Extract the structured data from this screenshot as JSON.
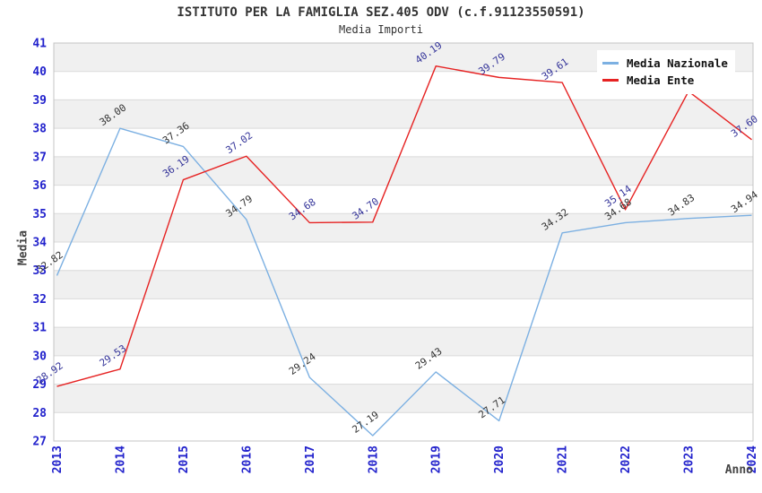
{
  "header": {
    "title": "ISTITUTO PER LA FAMIGLIA SEZ.405 ODV (c.f.91123550591)",
    "subtitle": "Media Importi"
  },
  "colors": {
    "axis_tick_text": "#2222CC",
    "band_gray": "#F0F0F0",
    "gridline": "#DADADA",
    "plot_border": "#C4C4C4",
    "axis_title_text": "#444444",
    "title_text": "#333333"
  },
  "chart_data": {
    "type": "line",
    "title": "ISTITUTO PER LA FAMIGLIA SEZ.405 ODV (c.f.91123550591)",
    "subtitle": "Media Importi",
    "x": [
      "2013",
      "2014",
      "2015",
      "2016",
      "2017",
      "2018",
      "2019",
      "2020",
      "2021",
      "2022",
      "2023",
      "2024"
    ],
    "xlabel": "Anno",
    "ylabel": "Media",
    "ylim": [
      27,
      41
    ],
    "ytick_step": 1,
    "grid": "horizontal gridlines with alternating gray/white bands",
    "legend_position": "top-right",
    "series": [
      {
        "name": "Media Nazionale",
        "color": "#7CB0E2",
        "label_color": "#333333",
        "values": [
          32.82,
          38.0,
          37.36,
          34.79,
          29.24,
          27.19,
          29.43,
          27.71,
          34.32,
          34.68,
          34.83,
          34.94
        ],
        "point_labels": [
          "32.82",
          "38.00",
          "37.36",
          "34.79",
          "29.24",
          "27.19",
          "29.43",
          "27.71",
          "34.32",
          "34.68",
          "34.83",
          "34.94"
        ]
      },
      {
        "name": "Media Ente",
        "color": "#E62222",
        "label_color": "#333399",
        "values": [
          28.92,
          29.53,
          36.19,
          37.02,
          34.68,
          34.7,
          40.19,
          39.79,
          39.61,
          35.14,
          39.3,
          37.6
        ],
        "point_labels": [
          "28.92",
          "29.53",
          "36.19",
          "37.02",
          "34.68",
          "34.70",
          "40.19",
          "39.79",
          "39.61",
          "35.14",
          null,
          "37.60"
        ]
      }
    ]
  }
}
